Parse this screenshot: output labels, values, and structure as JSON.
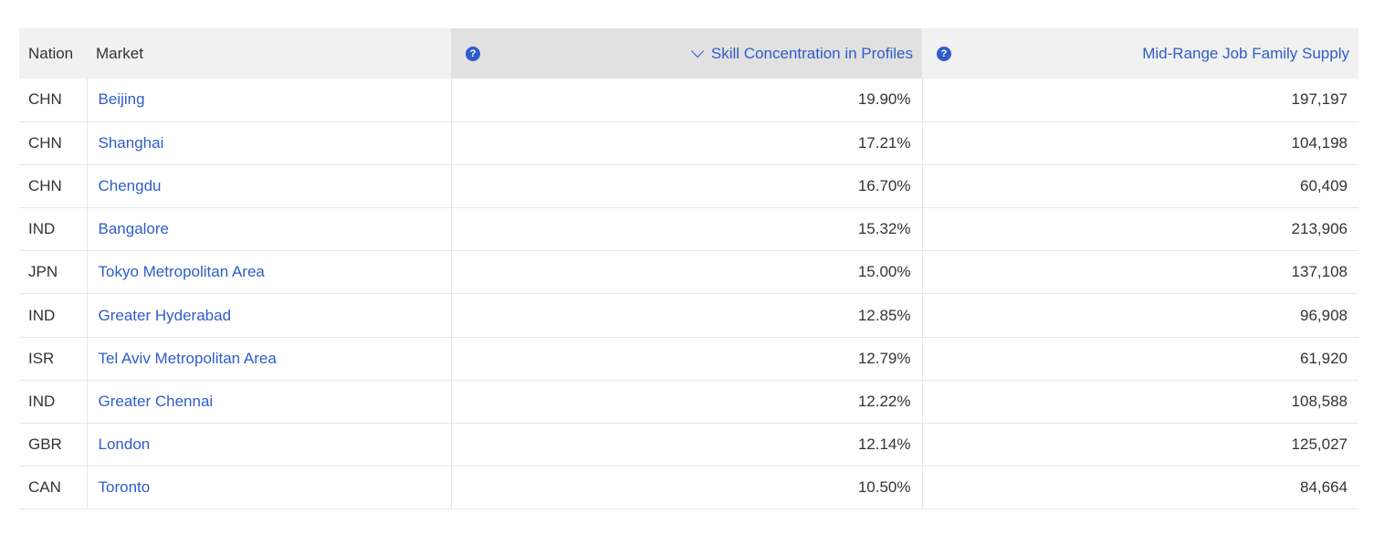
{
  "table": {
    "headers": {
      "nation": "Nation",
      "market": "Market",
      "skill": "Skill Concentration in Profiles",
      "supply": "Mid-Range Job Family Supply"
    },
    "help_glyph": "?",
    "sort": {
      "column": "skill",
      "direction": "descending",
      "icon": "chevron-down-icon"
    },
    "accent_color": "#2f5dc9",
    "rows": [
      {
        "nation": "CHN",
        "market": "Beijing",
        "skill": "19.90%",
        "supply": "197,197"
      },
      {
        "nation": "CHN",
        "market": "Shanghai",
        "skill": "17.21%",
        "supply": "104,198"
      },
      {
        "nation": "CHN",
        "market": "Chengdu",
        "skill": "16.70%",
        "supply": "60,409"
      },
      {
        "nation": "IND",
        "market": "Bangalore",
        "skill": "15.32%",
        "supply": "213,906"
      },
      {
        "nation": "JPN",
        "market": "Tokyo Metropolitan Area",
        "skill": "15.00%",
        "supply": "137,108"
      },
      {
        "nation": "IND",
        "market": "Greater Hyderabad",
        "skill": "12.85%",
        "supply": "96,908"
      },
      {
        "nation": "ISR",
        "market": "Tel Aviv Metropolitan Area",
        "skill": "12.79%",
        "supply": "61,920"
      },
      {
        "nation": "IND",
        "market": "Greater Chennai",
        "skill": "12.22%",
        "supply": "108,588"
      },
      {
        "nation": "GBR",
        "market": "London",
        "skill": "12.14%",
        "supply": "125,027"
      },
      {
        "nation": "CAN",
        "market": "Toronto",
        "skill": "10.50%",
        "supply": "84,664"
      }
    ]
  }
}
